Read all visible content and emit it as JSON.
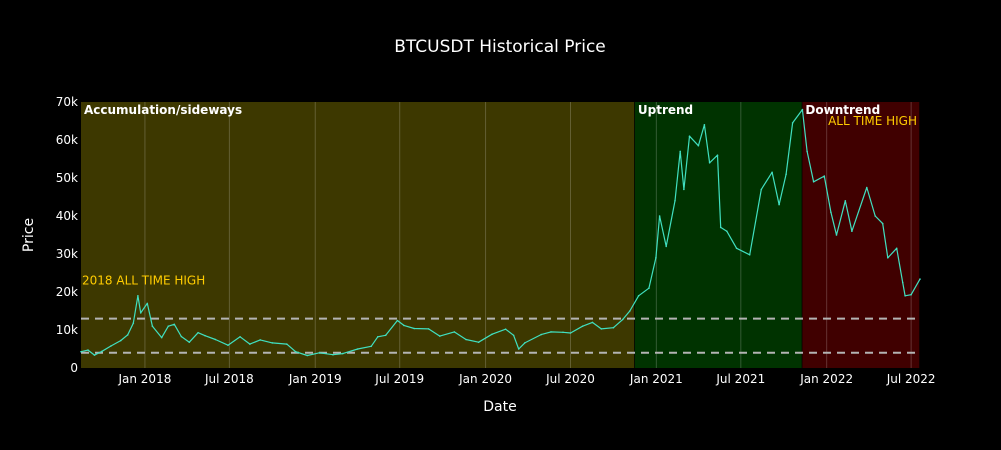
{
  "chart_data": {
    "type": "line",
    "title": "BTCUSDT Historical Price",
    "xlabel": "Date",
    "ylabel": "Price",
    "xlim": [
      "2017-08-17",
      "2022-07-20"
    ],
    "ylim": [
      0,
      70000
    ],
    "yticks": [
      {
        "value": 0,
        "label": "0"
      },
      {
        "value": 10000,
        "label": "10k"
      },
      {
        "value": 20000,
        "label": "20k"
      },
      {
        "value": 30000,
        "label": "30k"
      },
      {
        "value": 40000,
        "label": "40k"
      },
      {
        "value": 50000,
        "label": "50k"
      },
      {
        "value": 60000,
        "label": "60k"
      },
      {
        "value": 70000,
        "label": "70k"
      }
    ],
    "xticks": [
      {
        "date": "2018-01-01",
        "label": "Jan 2018"
      },
      {
        "date": "2018-07-01",
        "label": "Jul 2018"
      },
      {
        "date": "2019-01-01",
        "label": "Jan 2019"
      },
      {
        "date": "2019-07-01",
        "label": "Jul 2019"
      },
      {
        "date": "2020-01-01",
        "label": "Jan 2020"
      },
      {
        "date": "2020-07-01",
        "label": "Jul 2020"
      },
      {
        "date": "2021-01-01",
        "label": "Jan 2021"
      },
      {
        "date": "2021-07-01",
        "label": "Jul 2021"
      },
      {
        "date": "2022-01-01",
        "label": "Jan 2022"
      },
      {
        "date": "2022-07-01",
        "label": "Jul 2022"
      }
    ],
    "grid": true,
    "line_color": "#40e0c0",
    "series": [
      {
        "x": [
          "2017-08-17",
          "2017-09-01",
          "2017-09-15",
          "2017-10-01",
          "2017-10-20",
          "2017-11-10",
          "2017-11-25",
          "2017-12-07",
          "2017-12-17",
          "2017-12-23",
          "2018-01-06",
          "2018-01-17",
          "2018-02-06",
          "2018-02-20",
          "2018-03-05",
          "2018-03-20",
          "2018-04-06",
          "2018-04-25",
          "2018-05-10",
          "2018-06-01",
          "2018-06-28",
          "2018-07-24",
          "2018-08-14",
          "2018-09-05",
          "2018-10-01",
          "2018-11-01",
          "2018-11-20",
          "2018-12-15",
          "2019-01-10",
          "2019-02-08",
          "2019-03-01",
          "2019-04-02",
          "2019-05-01",
          "2019-05-15",
          "2019-06-01",
          "2019-06-26",
          "2019-07-10",
          "2019-08-01",
          "2019-09-01",
          "2019-09-25",
          "2019-10-26",
          "2019-11-20",
          "2019-12-17",
          "2020-01-15",
          "2020-02-13",
          "2020-03-01",
          "2020-03-12",
          "2020-03-25",
          "2020-04-29",
          "2020-05-20",
          "2020-06-15",
          "2020-07-01",
          "2020-07-27",
          "2020-08-17",
          "2020-09-05",
          "2020-10-01",
          "2020-10-21",
          "2020-11-05",
          "2020-11-24",
          "2020-12-16",
          "2020-12-31",
          "2021-01-08",
          "2021-01-22",
          "2021-02-10",
          "2021-02-21",
          "2021-03-01",
          "2021-03-13",
          "2021-04-01",
          "2021-04-14",
          "2021-04-25",
          "2021-05-12",
          "2021-05-19",
          "2021-06-01",
          "2021-06-22",
          "2021-07-20",
          "2021-08-14",
          "2021-09-06",
          "2021-09-21",
          "2021-10-06",
          "2021-10-20",
          "2021-11-10",
          "2021-11-20",
          "2021-12-04",
          "2021-12-27",
          "2022-01-10",
          "2022-01-22",
          "2022-02-10",
          "2022-02-24",
          "2022-03-28",
          "2022-04-15",
          "2022-05-01",
          "2022-05-12",
          "2022-05-31",
          "2022-06-13",
          "2022-06-18",
          "2022-07-01",
          "2022-07-20"
        ],
        "y": [
          4300,
          4700,
          3400,
          4400,
          5800,
          7200,
          8700,
          11800,
          19000,
          14500,
          17000,
          11000,
          8000,
          11000,
          11500,
          8300,
          6800,
          9300,
          8500,
          7500,
          6000,
          8200,
          6300,
          7400,
          6600,
          6300,
          4300,
          3300,
          4000,
          3500,
          3800,
          5000,
          5700,
          8200,
          8600,
          12500,
          11200,
          10400,
          10300,
          8400,
          9500,
          7500,
          6800,
          8900,
          10200,
          8600,
          5000,
          6600,
          8800,
          9500,
          9400,
          9200,
          11000,
          12000,
          10300,
          10600,
          12800,
          15000,
          19000,
          21000,
          29000,
          40000,
          32000,
          44000,
          57000,
          47000,
          61000,
          58500,
          64000,
          54000,
          56000,
          37000,
          36000,
          31500,
          29800,
          47000,
          51500,
          43000,
          51000,
          64500,
          68000,
          57000,
          49000,
          50500,
          41000,
          35000,
          44000,
          36000,
          47500,
          40000,
          38000,
          29000,
          31500,
          22500,
          19000,
          19300,
          23400
        ]
      }
    ],
    "regions": [
      {
        "label": "Accumulation/sideways",
        "start": "2017-08-17",
        "end": "2020-11-16",
        "fill": "#f5e000",
        "opacity": 0.25
      },
      {
        "label": "Uptrend",
        "start": "2020-11-16",
        "end": "2021-11-10",
        "fill": "#00ff00",
        "opacity": 0.2
      },
      {
        "label": "Downtrend",
        "start": "2021-11-10",
        "end": "2022-07-20",
        "fill": "#ff0000",
        "opacity": 0.25
      }
    ],
    "reference_lines": [
      {
        "value": 4000
      },
      {
        "value": 13000
      }
    ],
    "annotations": [
      {
        "text": "2018 ALL TIME HIGH",
        "x": "2017-08-17",
        "y": 22000,
        "color": "#ffcc00",
        "anchor": "start"
      },
      {
        "text": "ALL TIME HIGH",
        "x": "2022-07-20",
        "y": 64000,
        "color": "#ffcc00",
        "anchor": "end"
      }
    ]
  }
}
